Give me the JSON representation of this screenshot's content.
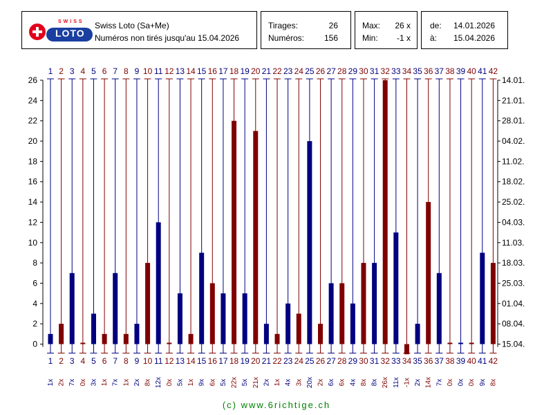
{
  "header": {
    "brand_top": "SWISS",
    "brand_main": "LOTO",
    "title": "Swiss Loto (Sa+Me)",
    "subtitle": "Numéros non tirés jusqu'au 15.04.2026",
    "tirages_label": "Tirages:",
    "tirages_value": "26",
    "numeros_label": "Numéros:",
    "numeros_value": "156",
    "max_label": "Max:",
    "max_value": "26 x",
    "min_label": "Min:",
    "min_value": "-1 x",
    "from_label": "de:",
    "from_value": "14.01.2026",
    "to_label": "à:",
    "to_value": "15.04.2026"
  },
  "footer": "(c) www.6richtige.ch",
  "colors": {
    "odd": "#000080",
    "even": "#800000",
    "grid": "#000000",
    "logo_red": "#e2001a",
    "logo_blue": "#1a3fa0",
    "footer": "#008000"
  },
  "chart_data": {
    "type": "bar",
    "categories": [
      "1",
      "2",
      "3",
      "4",
      "5",
      "6",
      "7",
      "8",
      "9",
      "10",
      "11",
      "12",
      "13",
      "14",
      "15",
      "16",
      "17",
      "18",
      "19",
      "20",
      "21",
      "22",
      "23",
      "24",
      "25",
      "26",
      "27",
      "28",
      "29",
      "30",
      "31",
      "32",
      "33",
      "34",
      "35",
      "36",
      "37",
      "38",
      "39",
      "40",
      "41",
      "42"
    ],
    "values": [
      1,
      2,
      7,
      0,
      3,
      1,
      7,
      1,
      2,
      8,
      12,
      0,
      5,
      1,
      9,
      6,
      5,
      22,
      5,
      21,
      2,
      1,
      4,
      3,
      20,
      2,
      6,
      6,
      4,
      8,
      8,
      26,
      11,
      -1,
      2,
      14,
      7,
      0,
      0,
      0,
      9,
      8
    ],
    "value_labels": [
      "1x",
      "2x",
      "7x",
      "0x",
      "3x",
      "1x",
      "7x",
      "1x",
      "2x",
      "8x",
      "12x",
      "0x",
      "5x",
      "1x",
      "9x",
      "6x",
      "5x",
      "22x",
      "5x",
      "21x",
      "2x",
      "1x",
      "4x",
      "3x",
      "20x",
      "2x",
      "6x",
      "6x",
      "4x",
      "8x",
      "8x",
      "26x",
      "11x",
      "-1x",
      "2x",
      "14x",
      "7x",
      "0x",
      "0x",
      "0x",
      "9x",
      "8x"
    ],
    "y_ticks": [
      "0",
      "2",
      "4",
      "6",
      "8",
      "10",
      "12",
      "14",
      "16",
      "18",
      "20",
      "22",
      "24",
      "26"
    ],
    "ylim": [
      0,
      26
    ],
    "right_axis_dates": [
      "15.04.",
      "08.04.",
      "01.04.",
      "25.03.",
      "18.03.",
      "11.03.",
      "04.03.",
      "25.02.",
      "18.02.",
      "11.02.",
      "04.02.",
      "28.01.",
      "21.01.",
      "14.01."
    ],
    "grid": false,
    "legend": "none"
  }
}
